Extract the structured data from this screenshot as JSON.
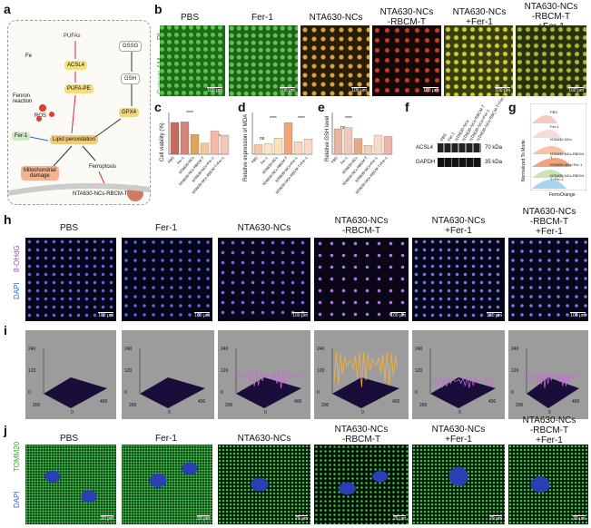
{
  "panel_letters": {
    "a": "a",
    "b": "b",
    "c": "c",
    "d": "d",
    "e": "e",
    "f": "f",
    "g": "g",
    "h": "h",
    "i": "i",
    "j": "j"
  },
  "groups": [
    "PBS",
    "Fer-1",
    "NTA630-NCs",
    "NTA630-NCs\n-RBCM-T",
    "NTA630-NCs\n+Fer-1",
    "NTA630-NCs\n-RBCM-T\n+Fer-1"
  ],
  "pathway": {
    "pufas": "PUFAs",
    "acsl4": "ACSL4",
    "pufa_pe": "PUFA-PE",
    "gssg": "GSSG",
    "gsh": "GSH",
    "gpx4": "GPX4",
    "fe": "Fe",
    "fenton": "Fenron\nreaction",
    "ros": "ROS",
    "fer1": "Fer-1",
    "lipid_perox": "Lipid peroxidation",
    "ferroptosis": "Ferroptosis",
    "mito": "Mitochondrial\ndamage",
    "nanodrug": "NTA630-NCs-RBCM-T"
  },
  "panel_b": {
    "row_label_top": "PI",
    "row_label_bottom": "Calcein AM",
    "scalebar": "100 μm"
  },
  "panel_c": {
    "ylabel": "Cell viability (%)",
    "sig": "****"
  },
  "panel_d": {
    "ylabel": "Relative expression of MDA",
    "sig": "****",
    "ns": "ns"
  },
  "panel_e": {
    "ylabel": "Relative GSH level",
    "sig": "****",
    "sig2": "***",
    "ns": "ns"
  },
  "panel_f": {
    "lanes": [
      "PBS",
      "Fer-1",
      "NTA630-NCs",
      "NTA630-NCs-RBCM-T",
      "NTA630-NCs+Fer-1",
      "NTA630-NCs-RBCM-T+Fer-1"
    ],
    "band1": "ACSL4",
    "band2": "GAPDH",
    "kda1": "70 kDa",
    "kda2": "35 kDa"
  },
  "panel_g": {
    "ylabel": "Normalized To Mode",
    "xlabel": "FerroOrange",
    "legend": [
      "PBS",
      "Fer-1",
      "NTA630-NCs",
      "NTA630-NCs-RBCM-T",
      "NTA630-NCs+Fer-1",
      "NTA630-NCs-RBCM-T+Fer-1"
    ]
  },
  "panel_h": {
    "row_label_top": "8-OHdG",
    "row_label_bottom": "DAPI",
    "scalebar": "100 μm"
  },
  "panel_i": {
    "z_ticks": [
      "240",
      "120",
      "0"
    ],
    "x_ticks": [
      "200",
      "400"
    ],
    "origin": "0"
  },
  "panel_j": {
    "row_label_top": "TOMM20",
    "row_label_bottom": "DAPI",
    "scalebar": "20 μm"
  },
  "chart_data": [
    {
      "type": "bar",
      "title": "c",
      "ylabel": "Cell viability (%)",
      "ylim": [
        0,
        1.2
      ],
      "categories": [
        "PBS",
        "Fer-1",
        "NTA630-NCs",
        "NTA630-NCs-RBCM-T",
        "NTA630-NCs+Fer-1",
        "NTA630-NCs-RBCM-T+Fer-1"
      ],
      "values": [
        1.0,
        1.02,
        0.62,
        0.35,
        0.73,
        0.6
      ]
    },
    {
      "type": "bar",
      "title": "d",
      "ylabel": "Relative expression of MDA",
      "ylim": [
        0,
        4
      ],
      "categories": [
        "PBS",
        "Fer-1",
        "NTA630-NCs",
        "NTA630-NCs-RBCM-T",
        "NTA630-NCs+Fer-1",
        "NTA630-NCs-RBCM-T+Fer-1"
      ],
      "values": [
        1.0,
        1.1,
        1.7,
        3.3,
        1.3,
        1.6
      ]
    },
    {
      "type": "bar",
      "title": "e",
      "ylabel": "Relative GSH level",
      "ylim": [
        0,
        1.5
      ],
      "categories": [
        "PBS",
        "Fer-1",
        "NTA630-NCs",
        "NTA630-NCs-RBCM-T",
        "NTA630-NCs+Fer-1",
        "NTA630-NCs-RBCM-T+Fer-1"
      ],
      "values": [
        1.0,
        1.05,
        0.62,
        0.35,
        0.75,
        0.7
      ]
    }
  ],
  "colors": {
    "bar_c": [
      "#c46a5e",
      "#d68679",
      "#e0a45a",
      "#f2c89a",
      "#f5b8a6",
      "#efc8b8"
    ],
    "bar_d": [
      "#f7c6a5",
      "#f6e6c8",
      "#fbe0b8",
      "#f1a574",
      "#f7d5c0",
      "#fbd8c8"
    ],
    "bar_e": [
      "#e7b4a0",
      "#f0c9b6",
      "#e7a884",
      "#f4d1b5",
      "#f9d9c9",
      "#f0b5a6"
    ]
  }
}
